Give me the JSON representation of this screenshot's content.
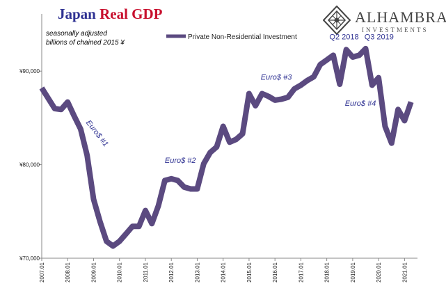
{
  "header": {
    "title_part1": "Japan ",
    "title_part2": "Real GDP",
    "subtitle_line1": "seasonally adjusted",
    "subtitle_line2": "billions of chained 2015 ¥"
  },
  "logo": {
    "name": "ALHAMBRA",
    "tagline": "INVESTMENTS",
    "icon": "alhambra-lattice-logo"
  },
  "colors": {
    "series": "#5b4a80",
    "title_primary": "#2e3192",
    "title_accent": "#c8102e",
    "annotation": "#2e3192",
    "axis": "#888888"
  },
  "chart_data": {
    "type": "line",
    "ylim": [
      70000,
      95000
    ],
    "xlim": [
      2007.0,
      2021.5
    ],
    "y_tick_values": [
      70000,
      80000,
      90000
    ],
    "y_tick_labels": [
      "¥70,000",
      "¥80,000",
      "¥90,000"
    ],
    "x_tick_values": [
      2007,
      2008,
      2009,
      2010,
      2011,
      2012,
      2013,
      2014,
      2015,
      2016,
      2017,
      2018,
      2019,
      2020,
      2021
    ],
    "x_tick_labels": [
      "2007.01",
      "2008.01",
      "2009.01",
      "2010.01",
      "2011.01",
      "2012.01",
      "2013.01",
      "2014.01",
      "2015.01",
      "2016.01",
      "2017.01",
      "2018.01",
      "2019.01",
      "2020.01",
      "2021.01"
    ],
    "legend": {
      "position": "top-center",
      "entries": [
        "Private Non-Residential Investment"
      ]
    },
    "grid": false,
    "series": [
      {
        "name": "Private Non-Residential Investment",
        "x": [
          2007.0,
          2007.25,
          2007.5,
          2007.75,
          2008.0,
          2008.25,
          2008.5,
          2008.75,
          2009.0,
          2009.25,
          2009.5,
          2009.75,
          2010.0,
          2010.25,
          2010.5,
          2010.75,
          2011.0,
          2011.25,
          2011.5,
          2011.75,
          2012.0,
          2012.25,
          2012.5,
          2012.75,
          2013.0,
          2013.25,
          2013.5,
          2013.75,
          2014.0,
          2014.25,
          2014.5,
          2014.75,
          2015.0,
          2015.25,
          2015.5,
          2015.75,
          2016.0,
          2016.25,
          2016.5,
          2016.75,
          2017.0,
          2017.25,
          2017.5,
          2017.75,
          2018.0,
          2018.25,
          2018.5,
          2018.75,
          2019.0,
          2019.25,
          2019.5,
          2019.75,
          2020.0,
          2020.25,
          2020.5,
          2020.75,
          2021.0,
          2021.25
        ],
        "y": [
          88200,
          87100,
          86000,
          85900,
          86700,
          85200,
          83800,
          81000,
          76300,
          73900,
          71800,
          71300,
          71800,
          72600,
          73400,
          73400,
          75100,
          73700,
          75600,
          78300,
          78500,
          78300,
          77600,
          77400,
          77400,
          80100,
          81300,
          81900,
          84100,
          82400,
          82700,
          83300,
          87600,
          86300,
          87600,
          87300,
          86900,
          87000,
          87200,
          88100,
          88500,
          89000,
          89400,
          90700,
          91200,
          91700,
          88600,
          92300,
          91500,
          91700,
          92400,
          88500,
          89300,
          84100,
          82300,
          85900,
          84700,
          86700
        ]
      }
    ],
    "annotations": [
      {
        "text": "Euro$ #1",
        "x": 2008.7,
        "y": 84500
      },
      {
        "text": "Euro$ #2",
        "x": 2011.75,
        "y": 80200
      },
      {
        "text": "Euro$ #3",
        "x": 2015.45,
        "y": 89100
      },
      {
        "text": "Euro$ #4",
        "x": 2018.7,
        "y": 86300
      },
      {
        "text": "Q2 2018",
        "x": 2018.1,
        "y": 93400
      },
      {
        "text": "Q3 2019",
        "x": 2019.45,
        "y": 93400
      }
    ]
  }
}
